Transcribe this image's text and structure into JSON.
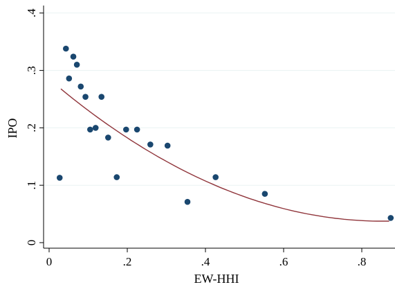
{
  "chart_data": {
    "type": "scatter",
    "title": "",
    "xlabel": "EW-HHI",
    "ylabel": "IPO",
    "xlim": [
      0,
      0.87
    ],
    "ylim": [
      0,
      0.4
    ],
    "x_ticks": [
      {
        "value": 0,
        "label": "0"
      },
      {
        "value": 0.2,
        "label": ".2"
      },
      {
        "value": 0.4,
        "label": ".4"
      },
      {
        "value": 0.6,
        "label": ".6"
      },
      {
        "value": 0.8,
        "label": ".8"
      }
    ],
    "y_ticks": [
      {
        "value": 0,
        "label": "0"
      },
      {
        "value": 0.1,
        "label": ".1"
      },
      {
        "value": 0.2,
        "label": ".2"
      },
      {
        "value": 0.3,
        "label": ".3"
      },
      {
        "value": 0.4,
        "label": ".4"
      }
    ],
    "grid": true,
    "legend": "none",
    "series": [
      {
        "kind": "scatter",
        "color": "#1a476f",
        "points": [
          {
            "x": 0.027,
            "y": 0.113
          },
          {
            "x": 0.043,
            "y": 0.338
          },
          {
            "x": 0.051,
            "y": 0.286
          },
          {
            "x": 0.062,
            "y": 0.324
          },
          {
            "x": 0.071,
            "y": 0.31
          },
          {
            "x": 0.081,
            "y": 0.272
          },
          {
            "x": 0.093,
            "y": 0.254
          },
          {
            "x": 0.105,
            "y": 0.197
          },
          {
            "x": 0.119,
            "y": 0.2
          },
          {
            "x": 0.134,
            "y": 0.254
          },
          {
            "x": 0.151,
            "y": 0.183
          },
          {
            "x": 0.173,
            "y": 0.114
          },
          {
            "x": 0.197,
            "y": 0.197
          },
          {
            "x": 0.225,
            "y": 0.197
          },
          {
            "x": 0.259,
            "y": 0.171
          },
          {
            "x": 0.303,
            "y": 0.169
          },
          {
            "x": 0.354,
            "y": 0.071
          },
          {
            "x": 0.426,
            "y": 0.114
          },
          {
            "x": 0.552,
            "y": 0.085
          },
          {
            "x": 0.874,
            "y": 0.043
          }
        ]
      },
      {
        "kind": "quadratic-fit",
        "color": "#90353b",
        "x_range": [
          0.03,
          0.87
        ],
        "coefficients": [
          0.2849,
          -0.5796,
          0.3393
        ]
      }
    ]
  }
}
